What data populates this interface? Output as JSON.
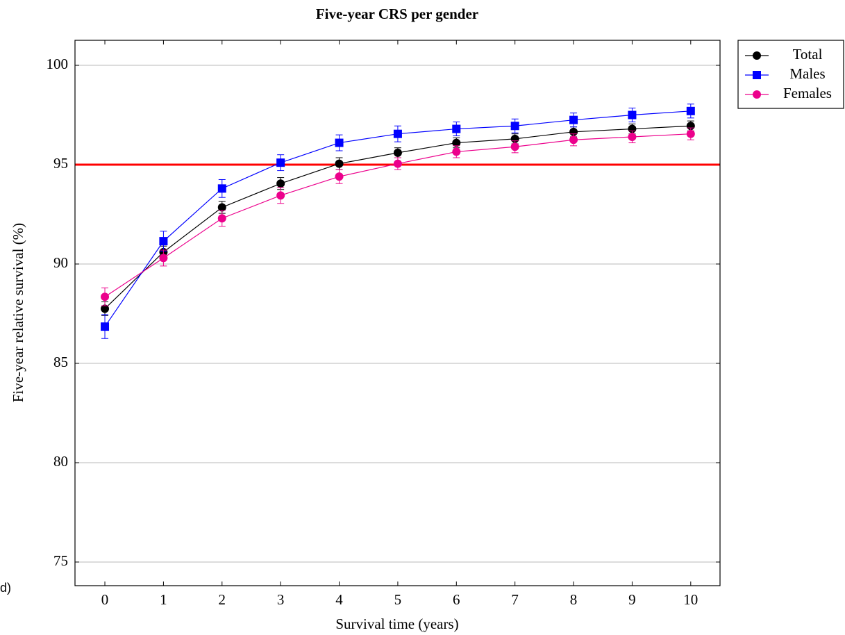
{
  "chart_data": {
    "type": "line",
    "title": "Five-year CRS per gender",
    "x_label": "Survival time (years)",
    "y_label": "Five-year relative survival (%)",
    "annotation": "d)",
    "x": [
      0,
      1,
      2,
      3,
      4,
      5,
      6,
      7,
      8,
      9,
      10
    ],
    "xlim": [
      -0.51,
      10.5
    ],
    "xticks": [
      0,
      1,
      2,
      3,
      4,
      5,
      6,
      7,
      8,
      9,
      10
    ],
    "ylim": [
      73.81,
      101.26
    ],
    "yticks": [
      75,
      80,
      85,
      90,
      95,
      100
    ],
    "grid": "y",
    "legend": "outside-top-right",
    "reference_line": {
      "value": 95,
      "color": "#ff0000"
    },
    "series": [
      {
        "name": "Total",
        "color": "#000000",
        "marker": "circle",
        "values": [
          87.75,
          90.6,
          92.85,
          94.05,
          95.05,
          95.6,
          96.1,
          96.3,
          96.65,
          96.8,
          96.95
        ],
        "errors": [
          0.35,
          0.3,
          0.3,
          0.3,
          0.3,
          0.25,
          0.25,
          0.25,
          0.25,
          0.25,
          0.25
        ]
      },
      {
        "name": "Males",
        "color": "#0000ff",
        "marker": "square",
        "values": [
          86.85,
          91.15,
          93.8,
          95.1,
          96.1,
          96.55,
          96.8,
          96.95,
          97.25,
          97.5,
          97.7
        ],
        "errors": [
          0.6,
          0.5,
          0.45,
          0.4,
          0.4,
          0.4,
          0.35,
          0.35,
          0.35,
          0.35,
          0.35
        ]
      },
      {
        "name": "Females",
        "color": "#ec008c",
        "marker": "circle",
        "values": [
          88.35,
          90.3,
          92.3,
          93.45,
          94.4,
          95.05,
          95.65,
          95.9,
          96.25,
          96.4,
          96.55
        ],
        "errors": [
          0.45,
          0.4,
          0.4,
          0.4,
          0.35,
          0.3,
          0.3,
          0.3,
          0.3,
          0.3,
          0.3
        ]
      }
    ]
  }
}
